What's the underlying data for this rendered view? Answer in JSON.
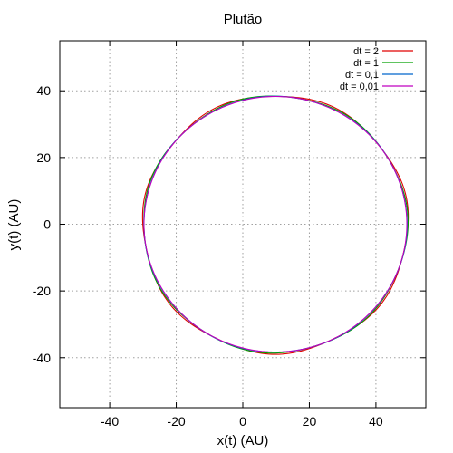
{
  "chart_data": {
    "type": "line",
    "title": "Plutão",
    "xlabel": "x(t) (AU)",
    "ylabel": "y(t) (AU)",
    "xlim": [
      -55,
      55
    ],
    "ylim": [
      -55,
      55
    ],
    "xticks": [
      -40,
      -20,
      0,
      20,
      40
    ],
    "yticks": [
      -40,
      -20,
      0,
      20,
      40
    ],
    "grid": true,
    "legend_position": "top-right",
    "orbit": {
      "x_min": -29.7,
      "x_max": 49.3,
      "y_min": -38.3,
      "y_max": 38.3
    },
    "series": [
      {
        "name": "dt = 2",
        "color": "#e00000",
        "offset": 0.35
      },
      {
        "name": "dt = 1",
        "color": "#00a000",
        "offset": 0.2
      },
      {
        "name": "dt = 0,1",
        "color": "#0066cc",
        "offset": 0.05
      },
      {
        "name": "dt = 0,01",
        "color": "#c000c0",
        "offset": 0.0
      }
    ]
  }
}
